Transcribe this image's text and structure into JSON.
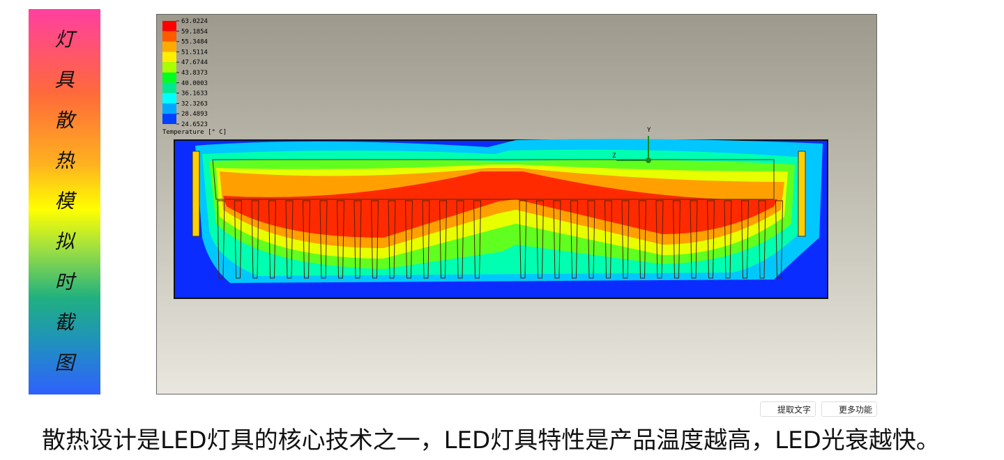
{
  "sidebar": {
    "chars": [
      "灯",
      "具",
      "散",
      "热",
      "模",
      "拟",
      "时",
      "截",
      "图"
    ]
  },
  "legend": {
    "values": [
      "63.0224",
      "59.1854",
      "55.3484",
      "51.5114",
      "47.6744",
      "43.8373",
      "40.0003",
      "36.1633",
      "32.3263",
      "28.4893",
      "24.6523"
    ],
    "label": "Temperature [° C]"
  },
  "axis": {
    "y": "Y",
    "z": "Z"
  },
  "toolbar": {
    "buttons": [
      "提取文字",
      "更多功能"
    ]
  },
  "caption": "散热设计是LED灯具的核心技术之一，LED灯具特性是产品温度越高，LED光衰越快。"
}
